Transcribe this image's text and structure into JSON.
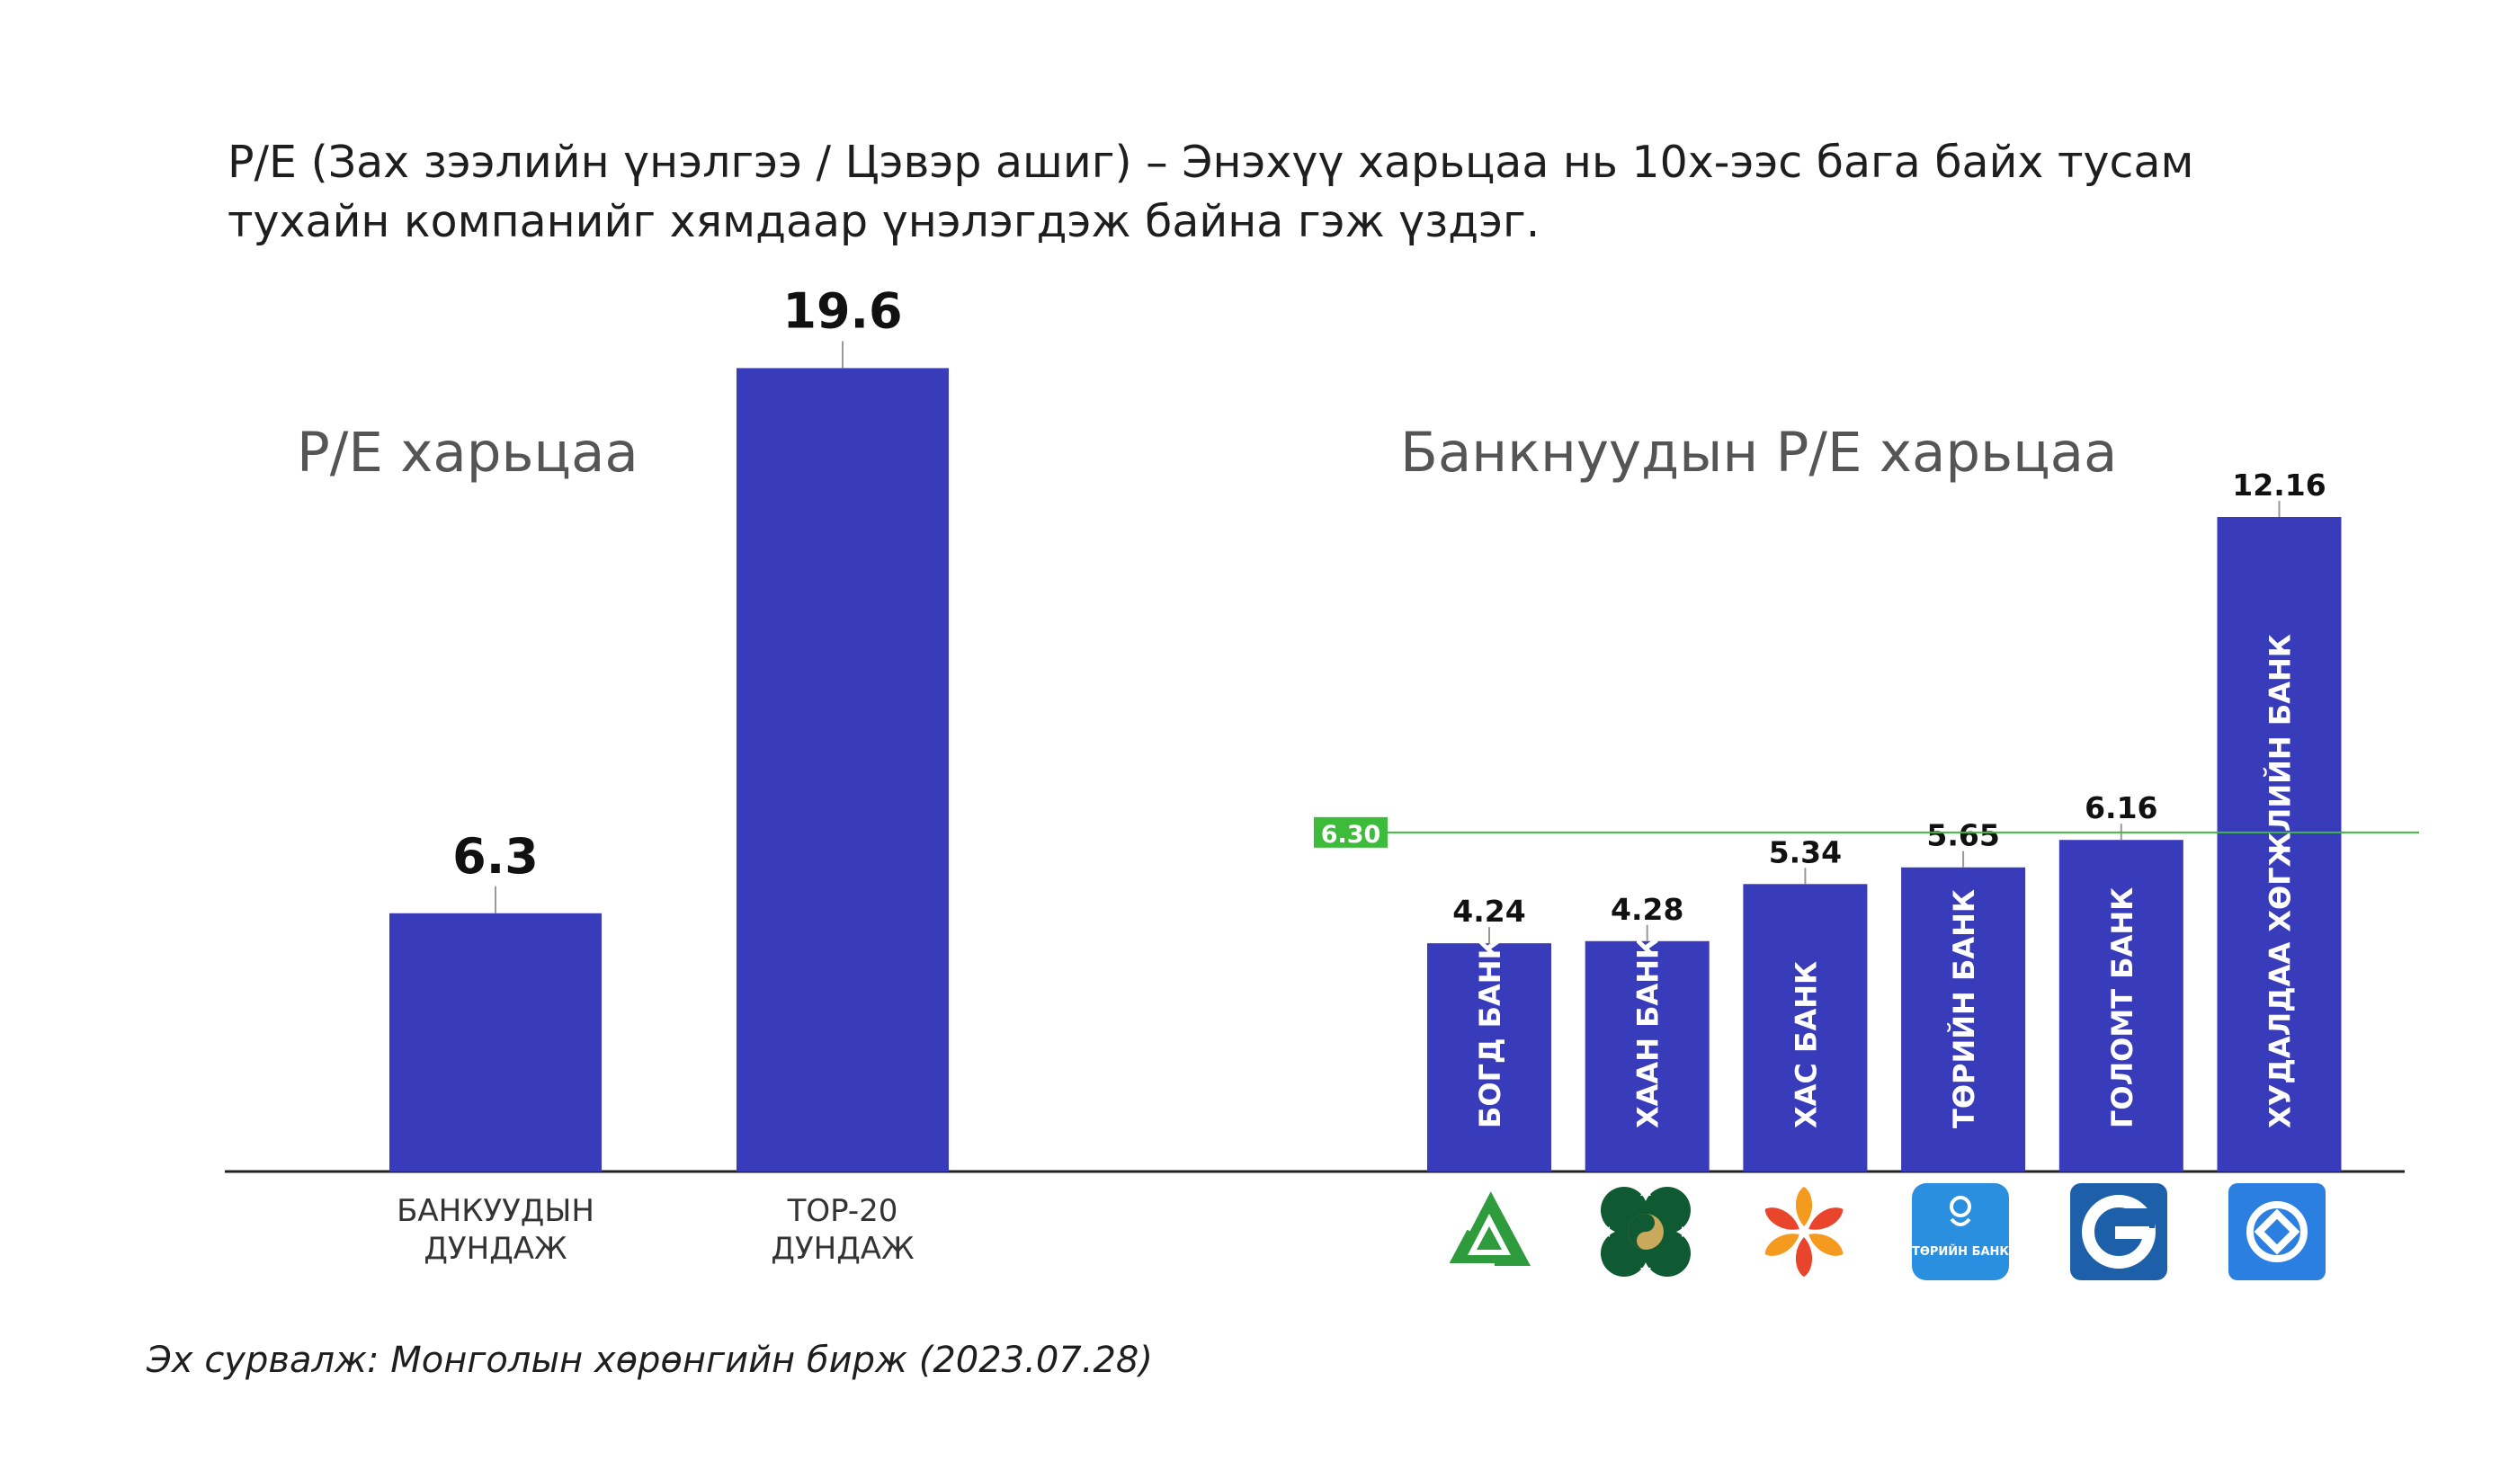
{
  "intro": {
    "line1": "P/E (Зах зээлийн үнэлгээ / Цэвэр ашиг) – Энэхүү харьцаа нь 10х-ээс бага байх тусам",
    "line2": "тухайн компанийг хямдаар үнэлэгдэж байна гэж үздэг."
  },
  "source": "Эх сурвалж: Монголын хөрөнгийн бирж (2023.07.28)",
  "colors": {
    "bar": "#383bba",
    "reference_line": "#3dbb3a",
    "axis": "#222222"
  },
  "logos": [
    {
      "bank": "БОГД БАНК",
      "icon": "bogd-bank-logo-icon",
      "color": "#2e9b3c"
    },
    {
      "bank": "ХААН БАНК",
      "icon": "khan-bank-logo-icon",
      "color": "#0f5a32"
    },
    {
      "bank": "ХАС БАНК",
      "icon": "xac-bank-logo-icon",
      "color": "#e8452c"
    },
    {
      "bank": "ТӨРИЙН БАНК",
      "icon": "turiin-bank-logo-icon",
      "color": "#2b8fe0",
      "text": "ТӨРИЙН БАНК"
    },
    {
      "bank": "ГОЛОМТ БАНК",
      "icon": "golomt-bank-logo-icon",
      "color": "#1d5fa8"
    },
    {
      "bank": "ХУДАЛДАА ХӨГЖЛИЙН БАНК",
      "icon": "tdb-logo-icon",
      "color": "#2a7fe0"
    }
  ],
  "chart_data": [
    {
      "type": "bar",
      "title": "P/E харьцаа",
      "categories": [
        "БАНКУУДЫН ДУНДАЖ",
        "TOP-20 ДУНДАЖ"
      ],
      "category_lines": [
        [
          "БАНКУУДЫН",
          "ДУНДАЖ"
        ],
        [
          "TOP-20",
          "ДУНДАЖ"
        ]
      ],
      "values": [
        6.3,
        19.6
      ],
      "value_labels": [
        "6.3",
        "19.6"
      ],
      "ylim": [
        0,
        22
      ]
    },
    {
      "type": "bar",
      "title": "Банкнуудын P/E харьцаа",
      "categories": [
        "БОГД БАНК",
        "ХААН БАНК",
        "ХАС БАНК",
        "ТӨРИЙН БАНК",
        "ГОЛОМТ БАНК",
        "ХУДАЛДАА ХӨГЖЛИЙН БАНК"
      ],
      "values": [
        4.24,
        4.28,
        5.34,
        5.65,
        6.16,
        12.16
      ],
      "value_labels": [
        "4.24",
        "4.28",
        "5.34",
        "5.65",
        "6.16",
        "12.16"
      ],
      "reference_line": {
        "value": 6.3,
        "label": "6.30"
      },
      "ylim": [
        0,
        12.5
      ]
    }
  ]
}
